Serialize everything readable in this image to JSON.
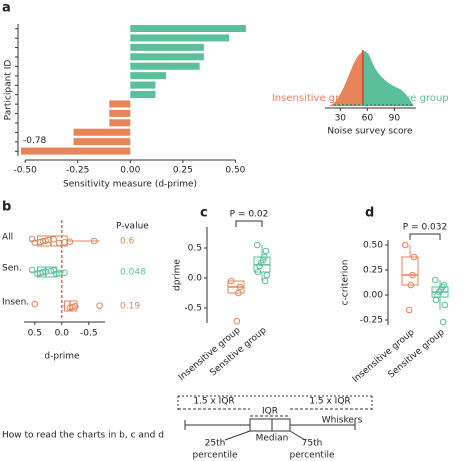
{
  "panel_labels": [
    "a",
    "b",
    "c",
    "d"
  ],
  "chart_data": [
    {
      "type": "bar",
      "orientation": "horizontal",
      "ylabel": "Participant ID",
      "xlabel": "Sensitivity measure (d-prime)",
      "values": [
        0.55,
        0.47,
        0.35,
        0.35,
        0.33,
        0.17,
        0.12,
        0.12,
        -0.1,
        -0.1,
        -0.1,
        -0.27,
        -0.27,
        -0.78
      ],
      "value_labels": [
        null,
        null,
        null,
        null,
        null,
        null,
        null,
        null,
        null,
        null,
        null,
        null,
        null,
        "-0.78"
      ],
      "colors": [
        "#5bbf9b",
        "#5bbf9b",
        "#5bbf9b",
        "#5bbf9b",
        "#5bbf9b",
        "#5bbf9b",
        "#5bbf9b",
        "#5bbf9b",
        "#e8845a",
        "#e8845a",
        "#e8845a",
        "#e8845a",
        "#e8845a",
        "#e8845a"
      ],
      "xlim": [
        -0.52,
        0.56
      ],
      "xticks": [
        {
          "value": -0.5,
          "label": "-0.50"
        },
        -0.25,
        {
          "value": 0,
          "label": "0.00"
        },
        0.25,
        {
          "value": 0.5,
          "label": "0.50"
        }
      ]
    },
    {
      "type": "density",
      "xlabel": "Noise survey score",
      "xlim": [
        13,
        114
      ],
      "xticks": [
        30,
        60,
        90
      ],
      "threshold": 55,
      "group_labels": [
        "Insensitive group",
        "Sensitive group"
      ],
      "colors": [
        "#e8845a",
        "#5bbf9b"
      ]
    },
    {
      "type": "box",
      "orientation": "horizontal",
      "categories": [
        "All",
        "Sen.",
        "Insen."
      ],
      "xlabel": "d-prime",
      "xlim": [
        0.7,
        -0.8
      ],
      "xticks": [
        0.5,
        {
          "value": 0,
          "label": "0.0"
        },
        -0.5
      ],
      "reference_line": 0,
      "p_value_header": "P-value",
      "p_values": [
        "0.6",
        "0.048",
        "0.19"
      ],
      "colors": [
        "#d9895a",
        "#5bbf9b",
        "#e8845a"
      ],
      "boxes": [
        {
          "min": -0.7,
          "q1": -0.1,
          "median": 0.2,
          "q3": 0.45,
          "max": 0.6,
          "points": [
            0.55,
            0.5,
            0.4,
            0.35,
            0.3,
            0.25,
            0.15,
            0.05,
            -0.05,
            -0.15,
            -0.6
          ]
        },
        {
          "min": -0.05,
          "q1": 0.1,
          "median": 0.3,
          "q3": 0.45,
          "max": 0.6,
          "points": [
            0.55,
            0.45,
            0.4,
            0.35,
            0.3,
            0.2,
            0.15,
            0.1,
            0.05,
            -0.05
          ]
        },
        {
          "min": -0.3,
          "q1": -0.28,
          "median": -0.15,
          "q3": -0.05,
          "max": -0.02,
          "points": [
            0.5,
            -0.15,
            -0.2,
            -0.25,
            -0.7
          ]
        }
      ]
    },
    {
      "type": "box",
      "orientation": "vertical",
      "categories": [
        "Insensitive group",
        "Sensitive group"
      ],
      "ylabel": "dprime",
      "ylim": [
        -0.75,
        0.85
      ],
      "yticks": [
        -0.5,
        {
          "value": 0,
          "label": "0.0"
        },
        0.5
      ],
      "annotation": "P = 0.02",
      "colors": [
        "#e8845a",
        "#5bbf9b"
      ],
      "boxes": [
        {
          "min": -0.25,
          "q1": -0.25,
          "median": -0.15,
          "q3": -0.05,
          "max": -0.05,
          "points": [
            -0.05,
            -0.15,
            -0.25,
            -0.72
          ]
        },
        {
          "min": -0.05,
          "q1": 0.1,
          "median": 0.22,
          "q3": 0.35,
          "max": 0.55,
          "points": [
            0.55,
            0.45,
            0.35,
            0.3,
            0.25,
            0.2,
            0.1,
            0.05,
            -0.05
          ]
        }
      ]
    },
    {
      "type": "box",
      "orientation": "vertical",
      "categories": [
        "Insensitive group",
        "Sensitive group"
      ],
      "ylabel": "c-criterion",
      "ylim": [
        -0.3,
        0.55
      ],
      "yticks": [
        {
          "value": 0.5,
          "label": "0.50"
        },
        0.25,
        {
          "value": 0,
          "label": "0.00"
        },
        -0.25
      ],
      "annotation": "P = 0.032",
      "colors": [
        "#e8845a",
        "#5bbf9b"
      ],
      "boxes": [
        {
          "min": 0.1,
          "q1": 0.1,
          "median": 0.2,
          "q3": 0.38,
          "max": 0.5,
          "points": [
            0.5,
            0.38,
            0.2,
            0.1,
            -0.15
          ]
        },
        {
          "min": -0.15,
          "q1": -0.02,
          "median": 0.03,
          "q3": 0.08,
          "max": 0.15,
          "points": [
            0.15,
            0.1,
            0.08,
            0.05,
            0.03,
            0,
            -0.05,
            -0.1,
            -0.27
          ]
        }
      ]
    }
  ],
  "guide": {
    "title": "How to read the charts in b, c and d",
    "left_range": "1.5 x IQR",
    "iqr": "IQR",
    "right_range": "1.5 x IQR",
    "whiskers": "Whiskers",
    "median": "Median",
    "q1_top": "25th",
    "q1_bottom": "percentile",
    "q3_top": "75th",
    "q3_bottom": "percentile"
  }
}
